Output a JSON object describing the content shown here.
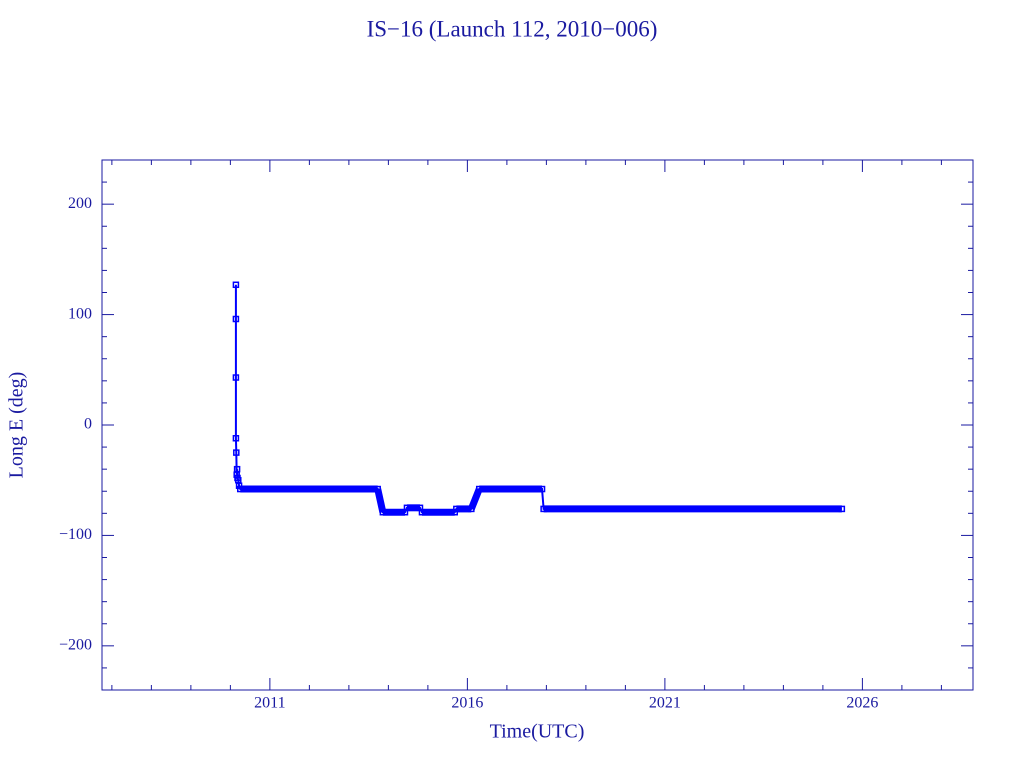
{
  "chart_data": {
    "type": "line",
    "title": "IS−16 (Launch 112, 2010−006)",
    "xlabel": "Time(UTC)",
    "ylabel": "Long E (deg)",
    "color": "#0000ff",
    "x": [
      2010.14,
      2010.14,
      2010.14,
      2010.14,
      2010.15,
      2010.16,
      2010.17,
      2010.18,
      2010.2,
      2010.22,
      2010.25,
      2013.73,
      2013.86,
      2014.42,
      2014.47,
      2014.8,
      2014.85,
      2015.68,
      2015.72,
      2016.1,
      2016.3,
      2017.89,
      2017.93,
      2025.48
    ],
    "values": [
      127,
      96,
      43,
      -12,
      -25,
      -45,
      -40,
      -48,
      -50,
      -55,
      -58,
      -58,
      -79,
      -79,
      -75,
      -75,
      -79,
      -79,
      -76,
      -76,
      -58,
      -58,
      -76,
      -76
    ],
    "xlim": [
      2006.75,
      2028.8
    ],
    "ylim": [
      -240,
      240
    ],
    "xticks": [
      2011,
      2016,
      2021,
      2026
    ],
    "yticks": [
      {
        "value": -200,
        "label": "−200"
      },
      {
        "value": -100,
        "label": "−100"
      },
      0,
      100,
      200
    ]
  }
}
